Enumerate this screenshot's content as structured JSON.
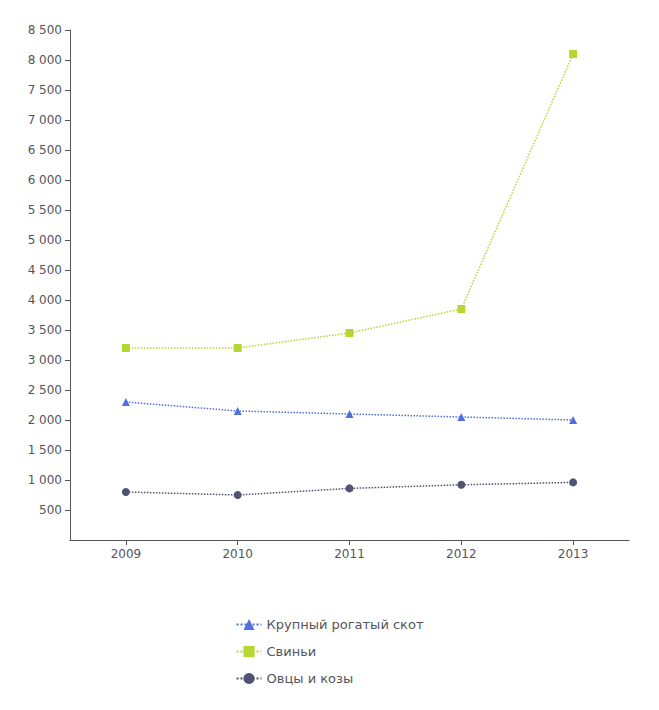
{
  "chart_data": {
    "type": "line",
    "x": [
      2009,
      2010,
      2011,
      2012,
      2013
    ],
    "xlim": [
      2008.5,
      2013.5
    ],
    "xticks": [
      2009,
      2010,
      2011,
      2012,
      2013
    ],
    "ylim": [
      0,
      8500
    ],
    "yticks": [
      500,
      {
        "value": 1000,
        "label": "1 000"
      },
      {
        "value": 1500,
        "label": "1 500"
      },
      {
        "value": 2000,
        "label": "2 000"
      },
      {
        "value": 2500,
        "label": "2 500"
      },
      {
        "value": 3000,
        "label": "3 000"
      },
      {
        "value": 3500,
        "label": "3 500"
      },
      {
        "value": 4000,
        "label": "4 000"
      },
      {
        "value": 4500,
        "label": "4 500"
      },
      {
        "value": 5000,
        "label": "5 000"
      },
      {
        "value": 5500,
        "label": "5 500"
      },
      {
        "value": 6000,
        "label": "6 000"
      },
      {
        "value": 6500,
        "label": "6 500"
      },
      {
        "value": 7000,
        "label": "7 000"
      },
      {
        "value": 7500,
        "label": "7 500"
      },
      {
        "value": 8000,
        "label": "8 000"
      },
      {
        "value": 8500,
        "label": "8 500"
      }
    ],
    "grid": false,
    "legend": "bottom",
    "series": [
      {
        "name": "Крупный рогатый скот",
        "values": [
          2300,
          2150,
          2100,
          2050,
          2000
        ],
        "marker": "triangle",
        "line_style": "dotted"
      },
      {
        "name": "Свиньи",
        "values": [
          3200,
          3200,
          3450,
          3850,
          8100
        ],
        "marker": "square",
        "line_style": "dotted"
      },
      {
        "name": "Овцы и козы",
        "values": [
          800,
          750,
          860,
          920,
          960
        ],
        "marker": "circle",
        "line_style": "dotted"
      }
    ]
  }
}
